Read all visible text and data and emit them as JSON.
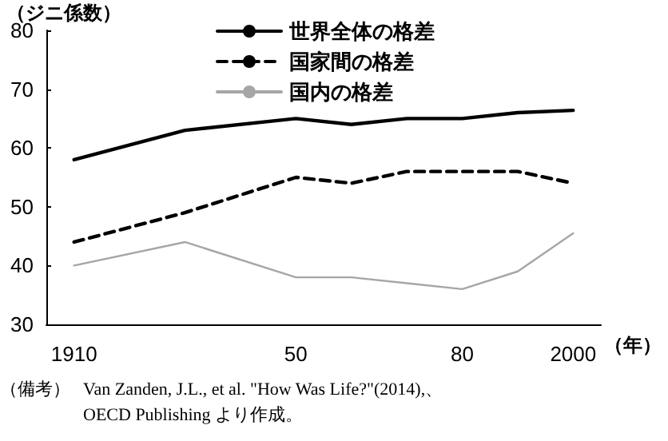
{
  "chart_data": {
    "type": "line",
    "ylabel": "（ジニ係数）",
    "xlabel": "（年）",
    "categories": [
      "1910",
      null,
      null,
      null,
      "50",
      null,
      null,
      "80",
      null,
      "2000"
    ],
    "series": [
      {
        "name": "世界全体の格差",
        "color": "#000000",
        "line_style": "solid",
        "values": [
          58,
          null,
          63,
          null,
          65,
          64,
          65,
          65,
          66,
          66.4
        ]
      },
      {
        "name": "国家間の格差",
        "color": "#000000",
        "line_style": "dashed",
        "values": [
          44,
          null,
          49,
          null,
          55,
          54,
          56,
          56,
          56,
          54
        ]
      },
      {
        "name": "国内の格差",
        "color": "#a6a6a6",
        "line_style": "solid",
        "values": [
          40,
          null,
          44,
          null,
          38,
          38,
          37,
          36,
          39,
          45.5
        ]
      }
    ],
    "ylim": [
      30,
      80
    ],
    "yticks": [
      30,
      40,
      50,
      60,
      70,
      80
    ],
    "grid": false,
    "legend": "top",
    "marker": "none",
    "annotations": [
      "（備考）",
      "Van Zanden, J.L., et al. \"How Was Life?\"(2014),、 OECD Publishing より作成。"
    ]
  }
}
